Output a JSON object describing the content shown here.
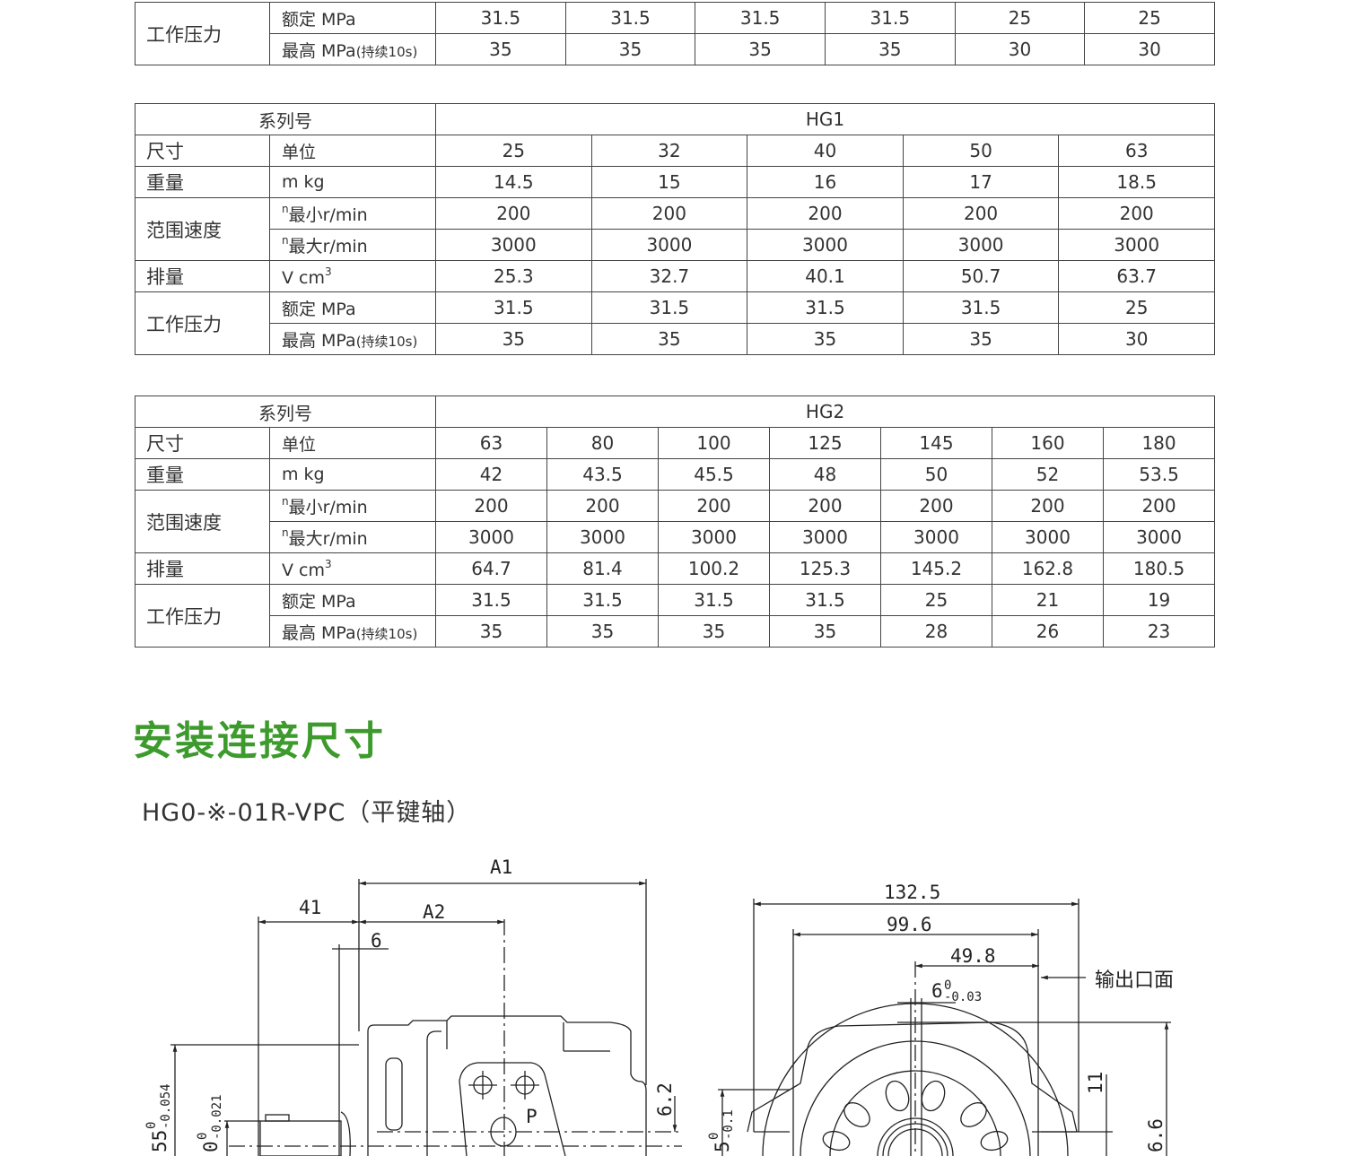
{
  "tables": [
    {
      "id": "table-top-partial",
      "header": null,
      "rows": [
        {
          "label": "工作压力",
          "units": [
            {
              "text": "额定 MPa",
              "values": [
                "31.5",
                "31.5",
                "31.5",
                "31.5",
                "25",
                "25"
              ]
            },
            {
              "text": "最高 MPa",
              "note": "(持续10s)",
              "values": [
                "35",
                "35",
                "35",
                "35",
                "30",
                "30"
              ]
            }
          ]
        }
      ]
    },
    {
      "id": "table-hg1",
      "header": {
        "label": "系列号",
        "series": "HG1"
      },
      "rows": [
        {
          "label": "尺寸",
          "units": [
            {
              "text": "单位",
              "values": [
                "25",
                "32",
                "40",
                "50",
                "63"
              ]
            }
          ]
        },
        {
          "label": "重量",
          "units": [
            {
              "text": "m kg",
              "values": [
                "14.5",
                "15",
                "16",
                "17",
                "18.5"
              ]
            }
          ]
        },
        {
          "label": "范围速度",
          "units": [
            {
              "pre_sup": "n",
              "text": "最小r/min",
              "values": [
                "200",
                "200",
                "200",
                "200",
                "200"
              ]
            },
            {
              "pre_sup": "n",
              "text": "最大r/min",
              "values": [
                "3000",
                "3000",
                "3000",
                "3000",
                "3000"
              ]
            }
          ]
        },
        {
          "label": "排量",
          "units": [
            {
              "text": "V cm",
              "post_sup": "3",
              "values": [
                "25.3",
                "32.7",
                "40.1",
                "50.7",
                "63.7"
              ]
            }
          ]
        },
        {
          "label": "工作压力",
          "units": [
            {
              "text": "额定 MPa",
              "values": [
                "31.5",
                "31.5",
                "31.5",
                "31.5",
                "25"
              ]
            },
            {
              "text": "最高 MPa",
              "note": "(持续10s)",
              "values": [
                "35",
                "35",
                "35",
                "35",
                "30"
              ]
            }
          ]
        }
      ]
    },
    {
      "id": "table-hg2",
      "header": {
        "label": "系列号",
        "series": "HG2"
      },
      "rows": [
        {
          "label": "尺寸",
          "units": [
            {
              "text": "单位",
              "values": [
                "63",
                "80",
                "100",
                "125",
                "145",
                "160",
                "180"
              ]
            }
          ]
        },
        {
          "label": "重量",
          "units": [
            {
              "text": "m kg",
              "values": [
                "42",
                "43.5",
                "45.5",
                "48",
                "50",
                "52",
                "53.5"
              ]
            }
          ]
        },
        {
          "label": "范围速度",
          "units": [
            {
              "pre_sup": "n",
              "text": "最小r/min",
              "values": [
                "200",
                "200",
                "200",
                "200",
                "200",
                "200",
                "200"
              ]
            },
            {
              "pre_sup": "n",
              "text": "最大r/min",
              "values": [
                "3000",
                "3000",
                "3000",
                "3000",
                "3000",
                "3000",
                "3000"
              ]
            }
          ]
        },
        {
          "label": "排量",
          "units": [
            {
              "text": "V cm",
              "post_sup": "3",
              "values": [
                "64.7",
                "81.4",
                "100.2",
                "125.3",
                "145.2",
                "162.8",
                "180.5"
              ]
            }
          ]
        },
        {
          "label": "工作压力",
          "units": [
            {
              "text": "额定 MPa",
              "values": [
                "31.5",
                "31.5",
                "31.5",
                "31.5",
                "25",
                "21",
                "19"
              ]
            },
            {
              "text": "最高 MPa",
              "note": "(持续10s)",
              "values": [
                "35",
                "35",
                "35",
                "35",
                "28",
                "26",
                "23"
              ]
            }
          ]
        }
      ]
    }
  ],
  "section": {
    "title": "安装连接尺寸",
    "title_color": "#3d9a2c",
    "subtitle": "HG0-※-01R-VPC（平键轴）"
  },
  "drawing": {
    "side_view": {
      "a1": "A1",
      "d41": "41",
      "a2": "A2",
      "d6": "6",
      "d62": "6.2",
      "port": "P",
      "d55": "55",
      "d55_tol_upper": "0",
      "d55_tol_lower": "-0.054",
      "d0": "0",
      "d0_tol_upper": "0",
      "d0_tol_lower": "-0.021"
    },
    "front_view": {
      "d1325": "132.5",
      "d996": "99.6",
      "d498": "49.8",
      "key": "6",
      "key_tol_upper": "0",
      "key_tol_lower": "-0.03",
      "outlet_label": "输出口面",
      "d11": "11",
      "d66": "6.6",
      "d5": "5",
      "d5_tol_upper": "0",
      "d5_tol_lower": "-0.1"
    }
  }
}
